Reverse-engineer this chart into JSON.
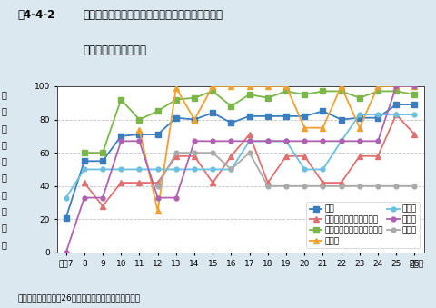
{
  "title_prefix": "図4-4-2",
  "title_main": "広域的な閉鎖性海域における環境基準達成率の推\n移（全窒素・全りん）",
  "ylabel_chars": [
    "環",
    "境",
    "基",
    "準",
    "達",
    "成",
    "率",
    "（",
    "％",
    "）"
  ],
  "xlabel_note": "（年）",
  "source": "資料：環境省「平成26年度公共用水域水質測定結果」",
  "x_labels": [
    "平成7",
    "8",
    "9",
    "10",
    "11",
    "12",
    "13",
    "14",
    "15",
    "16",
    "17",
    "18",
    "19",
    "20",
    "21",
    "22",
    "23",
    "24",
    "25",
    "26"
  ],
  "x_values": [
    7,
    8,
    9,
    10,
    11,
    12,
    13,
    14,
    15,
    16,
    17,
    18,
    19,
    20,
    21,
    22,
    23,
    24,
    25,
    26
  ],
  "ylim": [
    0,
    100
  ],
  "yticks": [
    0,
    20,
    40,
    60,
    80,
    100
  ],
  "series": [
    {
      "name": "海域",
      "color": "#3a7ebf",
      "marker": "s",
      "markersize": 4,
      "linewidth": 1.3,
      "values": [
        21,
        55,
        55,
        70,
        71,
        71,
        81,
        80,
        84,
        78,
        82,
        82,
        82,
        82,
        85,
        80,
        81,
        81,
        89,
        89
      ]
    },
    {
      "name": "伊勢湾（三河湾を含む）",
      "color": "#e07070",
      "marker": "^",
      "markersize": 4,
      "linewidth": 1.3,
      "values": [
        null,
        42,
        28,
        42,
        42,
        42,
        58,
        58,
        42,
        58,
        71,
        42,
        58,
        58,
        42,
        42,
        58,
        58,
        83,
        71
      ]
    },
    {
      "name": "瀬戸内海（大阪湾を除く）",
      "color": "#7ab648",
      "marker": "s",
      "markersize": 4,
      "linewidth": 1.3,
      "values": [
        null,
        60,
        60,
        92,
        80,
        85,
        92,
        93,
        97,
        88,
        95,
        93,
        97,
        95,
        97,
        97,
        93,
        97,
        97,
        95
      ]
    },
    {
      "name": "八代海",
      "color": "#f0a030",
      "marker": "^",
      "markersize": 4,
      "linewidth": 1.3,
      "values": [
        null,
        null,
        null,
        null,
        74,
        25,
        99,
        80,
        100,
        100,
        100,
        100,
        100,
        75,
        75,
        100,
        75,
        100,
        100,
        100
      ]
    },
    {
      "name": "東京湾",
      "color": "#6bbfdf",
      "marker": "o",
      "markersize": 3.5,
      "linewidth": 1.3,
      "values": [
        33,
        50,
        50,
        50,
        50,
        50,
        50,
        50,
        50,
        50,
        67,
        67,
        67,
        50,
        50,
        67,
        83,
        83,
        83,
        83
      ]
    },
    {
      "name": "大阪湾",
      "color": "#b060b0",
      "marker": "o",
      "markersize": 3.5,
      "linewidth": 1.3,
      "values": [
        0,
        33,
        33,
        67,
        67,
        33,
        33,
        67,
        67,
        67,
        67,
        67,
        67,
        67,
        67,
        67,
        67,
        67,
        100,
        100
      ]
    },
    {
      "name": "有明海",
      "color": "#aaaaaa",
      "marker": "o",
      "markersize": 3.5,
      "linewidth": 1.3,
      "values": [
        null,
        null,
        null,
        null,
        null,
        40,
        60,
        60,
        60,
        50,
        60,
        40,
        40,
        40,
        40,
        40,
        40,
        40,
        40,
        40
      ]
    }
  ],
  "background_color": "#dce8f0",
  "plot_bg_color": "#ffffff",
  "grid_color": "#999999",
  "grid_style": "--",
  "grid_alpha": 0.6,
  "title_fontsize": 8.5,
  "title_prefix_fontsize": 8.5,
  "axis_label_fontsize": 7,
  "legend_fontsize": 6.5,
  "tick_fontsize": 6.5,
  "source_fontsize": 6.5
}
